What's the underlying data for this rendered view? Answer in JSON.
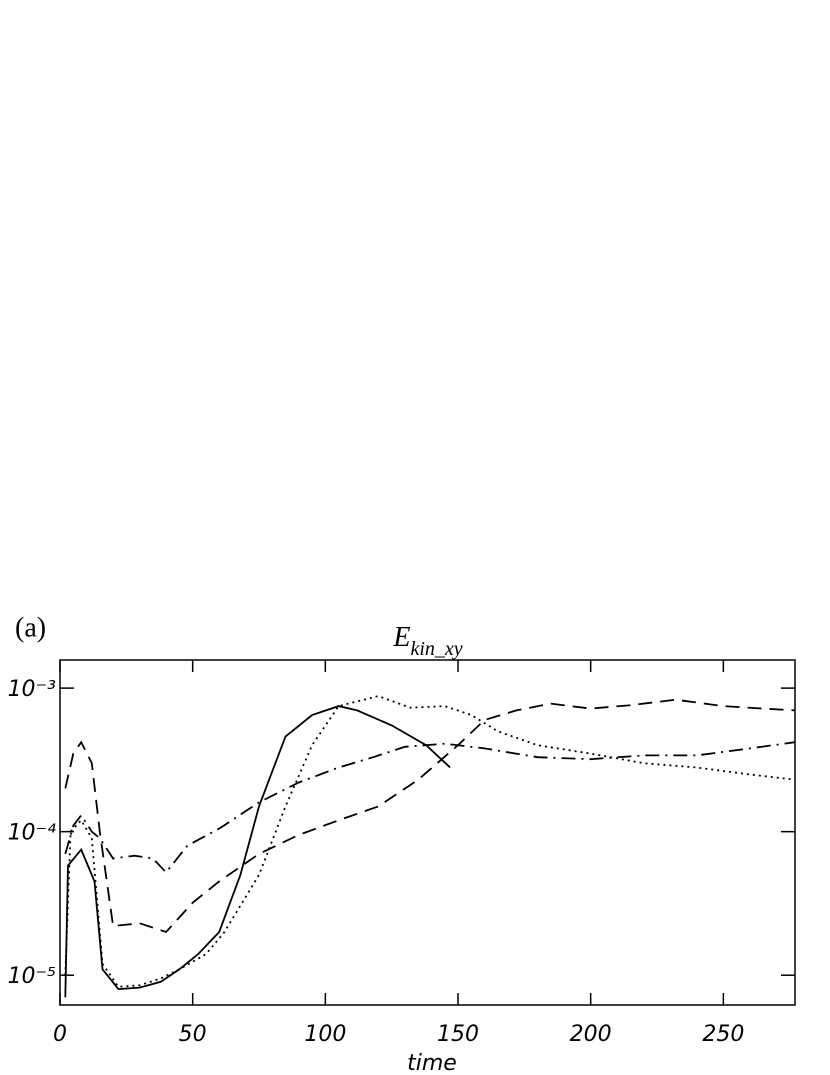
{
  "chart_data": {
    "type": "line",
    "panel_label": "(a)",
    "title": "E",
    "title_subscript": "kin_xy",
    "x_label": "time",
    "log_y": true,
    "xlim": [
      0,
      277
    ],
    "ylim": [
      6.2e-06,
      0.00157
    ],
    "xticks": [
      0,
      50,
      100,
      150,
      200,
      250
    ],
    "yticks": [
      {
        "value": 1e-05,
        "label": "10⁻⁵"
      },
      {
        "value": 0.0001,
        "label": "10⁻⁴"
      },
      {
        "value": 0.001,
        "label": "10⁻³"
      }
    ],
    "series": [
      {
        "color": "#000000",
        "linestyle": "solid",
        "x": [
          2,
          3,
          8,
          13,
          16,
          22,
          30,
          38,
          45,
          52,
          60,
          68,
          75,
          85,
          95,
          105,
          112,
          125,
          138,
          147
        ],
        "values": [
          7e-06,
          5.8e-05,
          7.5e-05,
          4.5e-05,
          1.1e-05,
          8e-06,
          8.2e-06,
          9e-06,
          1.1e-05,
          1.4e-05,
          2e-05,
          5e-05,
          0.00015,
          0.00046,
          0.00065,
          0.00075,
          0.0007,
          0.00055,
          0.0004,
          0.00028
        ]
      },
      {
        "color": "#000000",
        "linestyle": "dotted",
        "x": [
          2,
          4,
          8,
          12,
          16,
          22,
          30,
          38,
          45,
          55,
          62,
          75,
          85,
          95,
          105,
          120,
          132,
          145,
          155,
          165,
          180,
          200,
          220,
          240,
          260,
          277
        ],
        "values": [
          1e-05,
          0.0001,
          0.00012,
          9e-05,
          1.2e-05,
          8.3e-06,
          8.5e-06,
          9.5e-06,
          1.1e-05,
          1.4e-05,
          2e-05,
          5e-05,
          0.00015,
          0.0004,
          0.00075,
          0.00088,
          0.00073,
          0.00075,
          0.00065,
          0.0005,
          0.0004,
          0.00035,
          0.0003,
          0.00028,
          0.00025,
          0.00023
        ]
      },
      {
        "color": "#000000",
        "linestyle": "dashed",
        "x": [
          2,
          5,
          8,
          12,
          15,
          20,
          30,
          40,
          50,
          60,
          75,
          90,
          105,
          120,
          135,
          150,
          160,
          172,
          185,
          200,
          215,
          232,
          250,
          265,
          277
        ],
        "values": [
          0.0002,
          0.00035,
          0.00042,
          0.0003,
          0.0001,
          2.2e-05,
          2.3e-05,
          2e-05,
          3.2e-05,
          4.5e-05,
          7e-05,
          9.5e-05,
          0.00012,
          0.00015,
          0.00023,
          0.0004,
          0.0006,
          0.0007,
          0.00078,
          0.00072,
          0.00076,
          0.00083,
          0.00075,
          0.00072,
          0.0007
        ]
      },
      {
        "color": "#000000",
        "linestyle": "dashdot",
        "x": [
          2,
          5,
          8,
          12,
          15,
          20,
          28,
          35,
          40,
          48,
          60,
          75,
          90,
          105,
          118,
          130,
          145,
          160,
          180,
          200,
          220,
          240,
          260,
          277
        ],
        "values": [
          7e-05,
          0.00011,
          0.00013,
          0.0001,
          9e-05,
          6.5e-05,
          6.8e-05,
          6.5e-05,
          5.2e-05,
          8e-05,
          0.000105,
          0.00016,
          0.00022,
          0.00028,
          0.00033,
          0.00039,
          0.00041,
          0.00038,
          0.00033,
          0.00032,
          0.00034,
          0.00034,
          0.00038,
          0.00042
        ]
      }
    ]
  }
}
